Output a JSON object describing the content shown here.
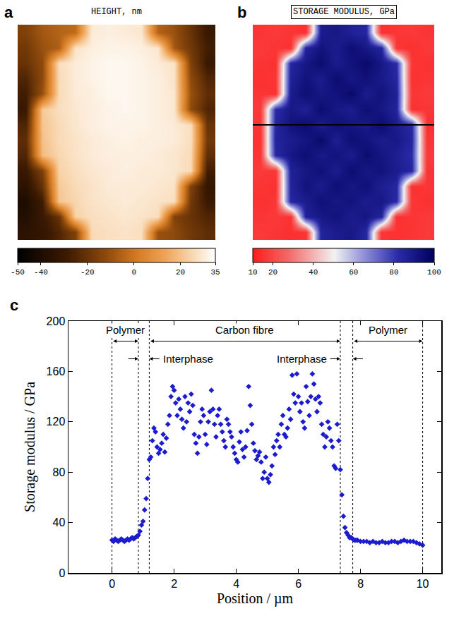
{
  "chart_data": [
    {
      "type": "heatmap",
      "label": "a",
      "title": "HEIGHT, nm",
      "z": [
        [
          -15,
          -8,
          -5,
          -3,
          30,
          31,
          30,
          29,
          -5,
          -10,
          -20,
          -30
        ],
        [
          -18,
          -10,
          -6,
          28,
          31,
          32,
          32,
          31,
          29,
          -8,
          -18,
          -28
        ],
        [
          -20,
          -12,
          27,
          30,
          32,
          33,
          33,
          32,
          30,
          28,
          -15,
          -30
        ],
        [
          -25,
          -12,
          26,
          30,
          32,
          33,
          33,
          32,
          31,
          28,
          -12,
          -25
        ],
        [
          -28,
          -10,
          26,
          30,
          31,
          33,
          33,
          32,
          31,
          29,
          -10,
          -22
        ],
        [
          -30,
          22,
          27,
          29,
          31,
          32,
          33,
          32,
          31,
          29,
          -12,
          -25
        ],
        [
          -25,
          21,
          26,
          29,
          31,
          32,
          32,
          32,
          31,
          30,
          27,
          -20
        ],
        [
          -22,
          20,
          26,
          28,
          30,
          31,
          32,
          31,
          31,
          30,
          27,
          -18
        ],
        [
          -25,
          19,
          25,
          28,
          30,
          31,
          31,
          31,
          30,
          29,
          26,
          -22
        ],
        [
          -30,
          -15,
          24,
          27,
          29,
          30,
          31,
          30,
          30,
          29,
          26,
          -28
        ],
        [
          -35,
          -20,
          22,
          26,
          28,
          30,
          30,
          30,
          29,
          28,
          -15,
          -32
        ],
        [
          -40,
          -28,
          21,
          25,
          28,
          29,
          30,
          29,
          28,
          27,
          -18,
          -30
        ],
        [
          -38,
          -30,
          -20,
          24,
          27,
          28,
          29,
          28,
          27,
          -15,
          -20,
          -25
        ],
        [
          -35,
          -32,
          -25,
          -15,
          26,
          27,
          28,
          27,
          -10,
          -12,
          -18,
          -22
        ]
      ],
      "zlim": [
        -50,
        35
      ],
      "zticks": [
        -50,
        -40,
        -20,
        0,
        20,
        35
      ]
    },
    {
      "type": "heatmap",
      "label": "b",
      "title": "STORAGE MODULUS, GPa",
      "z": [
        [
          16,
          17,
          16,
          15,
          88,
          90,
          86,
          84,
          15,
          16,
          17,
          16
        ],
        [
          17,
          16,
          15,
          85,
          92,
          88,
          94,
          90,
          85,
          16,
          15,
          17
        ],
        [
          16,
          15,
          84,
          90,
          95,
          88,
          92,
          96,
          90,
          82,
          16,
          15
        ],
        [
          15,
          16,
          86,
          92,
          88,
          95,
          90,
          93,
          89,
          84,
          15,
          16
        ],
        [
          16,
          15,
          88,
          94,
          90,
          92,
          96,
          88,
          92,
          86,
          16,
          17
        ],
        [
          17,
          82,
          90,
          86,
          95,
          90,
          88,
          94,
          90,
          85,
          15,
          16
        ],
        [
          16,
          84,
          92,
          95,
          88,
          93,
          91,
          89,
          95,
          88,
          83,
          15
        ],
        [
          15,
          85,
          88,
          91,
          96,
          87,
          94,
          92,
          88,
          90,
          84,
          16
        ],
        [
          16,
          83,
          90,
          94,
          89,
          92,
          88,
          95,
          91,
          87,
          82,
          17
        ],
        [
          17,
          16,
          86,
          90,
          93,
          88,
          95,
          90,
          92,
          88,
          84,
          16
        ],
        [
          16,
          15,
          85,
          92,
          88,
          94,
          90,
          93,
          87,
          84,
          15,
          16
        ],
        [
          15,
          16,
          84,
          88,
          93,
          90,
          92,
          88,
          90,
          83,
          16,
          15
        ],
        [
          16,
          17,
          15,
          86,
          90,
          92,
          88,
          91,
          85,
          15,
          16,
          17
        ],
        [
          17,
          16,
          15,
          16,
          85,
          88,
          90,
          84,
          16,
          15,
          16,
          17
        ]
      ],
      "zlim": [
        10,
        100
      ],
      "zticks": [
        10,
        20,
        40,
        60,
        80,
        100
      ]
    },
    {
      "type": "scatter",
      "label": "c",
      "x_label": "Position / µm",
      "y_label": "Storage modulus / GPa",
      "color": "#1c1ccf",
      "marker": "diamond",
      "x": [
        0,
        0.05,
        0.1,
        0.15,
        0.2,
        0.25,
        0.3,
        0.35,
        0.4,
        0.45,
        0.5,
        0.55,
        0.6,
        0.65,
        0.7,
        0.75,
        0.8,
        0.85,
        0.9,
        0.95,
        1,
        1.05,
        1.1,
        1.15,
        1.2,
        1.25,
        1.3,
        1.35,
        1.4,
        1.45,
        1.5,
        1.55,
        1.6,
        1.65,
        1.7,
        1.75,
        1.8,
        1.85,
        1.9,
        1.95,
        2,
        2.05,
        2.1,
        2.15,
        2.2,
        2.25,
        2.3,
        2.35,
        2.4,
        2.45,
        2.5,
        2.55,
        2.6,
        2.65,
        2.7,
        2.75,
        2.8,
        2.85,
        2.9,
        2.95,
        3,
        3.05,
        3.1,
        3.15,
        3.2,
        3.25,
        3.3,
        3.35,
        3.4,
        3.45,
        3.5,
        3.55,
        3.6,
        3.65,
        3.7,
        3.75,
        3.8,
        3.85,
        3.9,
        3.95,
        4,
        4.05,
        4.1,
        4.15,
        4.2,
        4.25,
        4.3,
        4.35,
        4.4,
        4.45,
        4.5,
        4.55,
        4.6,
        4.65,
        4.7,
        4.75,
        4.8,
        4.85,
        4.9,
        4.95,
        5,
        5.05,
        5.1,
        5.15,
        5.2,
        5.25,
        5.3,
        5.35,
        5.4,
        5.45,
        5.5,
        5.55,
        5.6,
        5.65,
        5.7,
        5.75,
        5.8,
        5.85,
        5.9,
        5.95,
        6,
        6.05,
        6.1,
        6.15,
        6.2,
        6.25,
        6.3,
        6.35,
        6.4,
        6.45,
        6.5,
        6.55,
        6.6,
        6.65,
        6.7,
        6.75,
        6.8,
        6.85,
        6.9,
        6.95,
        7,
        7.05,
        7.1,
        7.15,
        7.2,
        7.25,
        7.3,
        7.35,
        7.4,
        7.45,
        7.5,
        7.55,
        7.6,
        7.65,
        7.7,
        7.75,
        7.8,
        7.85,
        7.9,
        8,
        8.1,
        8.2,
        8.3,
        8.4,
        8.5,
        8.6,
        8.7,
        8.8,
        8.9,
        9,
        9.1,
        9.2,
        9.3,
        9.4,
        9.5,
        9.6,
        9.7,
        9.8,
        9.9,
        10
      ],
      "values": [
        26,
        25,
        27,
        26,
        25,
        26,
        27,
        26,
        25,
        26,
        27,
        26,
        27,
        28,
        27,
        28,
        29,
        30,
        33,
        38,
        41,
        50,
        59,
        75,
        90,
        92,
        105,
        115,
        112,
        100,
        95,
        98,
        103,
        110,
        96,
        107,
        118,
        125,
        140,
        148,
        145,
        135,
        125,
        138,
        130,
        122,
        115,
        140,
        120,
        135,
        128,
        142,
        133,
        110,
        103,
        95,
        108,
        120,
        130,
        125,
        110,
        102,
        120,
        128,
        145,
        130,
        118,
        108,
        125,
        130,
        118,
        112,
        105,
        100,
        122,
        118,
        112,
        108,
        100,
        95,
        90,
        88,
        104,
        112,
        98,
        92,
        100,
        113,
        148,
        133,
        118,
        103,
        97,
        90,
        93,
        96,
        88,
        75,
        80,
        92,
        75,
        72,
        78,
        85,
        100,
        94,
        105,
        110,
        100,
        118,
        125,
        110,
        108,
        115,
        130,
        122,
        157,
        142,
        135,
        158,
        140,
        128,
        135,
        120,
        115,
        148,
        136,
        125,
        140,
        158,
        150,
        138,
        128,
        140,
        135,
        118,
        110,
        100,
        108,
        120,
        115,
        105,
        100,
        85,
        83,
        118,
        105,
        82,
        62,
        45,
        36,
        32,
        30,
        28,
        28,
        27,
        26,
        26,
        26,
        25,
        25,
        25,
        24,
        25,
        24,
        24,
        25,
        24,
        24,
        25,
        25,
        24,
        25,
        26,
        25,
        25,
        25,
        24,
        23,
        22
      ],
      "xlim": [
        -1.4,
        10.6
      ],
      "xticks": [
        0,
        2,
        4,
        6,
        8,
        10
      ],
      "ylim": [
        0,
        200
      ],
      "yticks": [
        0,
        40,
        80,
        120,
        160,
        200
      ],
      "regions": [
        {
          "text": "Polymer",
          "from": 0,
          "to": 0.85
        },
        {
          "text": "Carbon fibre",
          "from": 1.2,
          "to": 7.35
        },
        {
          "text": "Polymer",
          "from": 7.75,
          "to": 10
        }
      ],
      "interphases": [
        {
          "text": "Interphase",
          "from": 0.85,
          "to": 1.2
        },
        {
          "text": "Interphase",
          "from": 7.35,
          "to": 7.75
        }
      ]
    }
  ]
}
